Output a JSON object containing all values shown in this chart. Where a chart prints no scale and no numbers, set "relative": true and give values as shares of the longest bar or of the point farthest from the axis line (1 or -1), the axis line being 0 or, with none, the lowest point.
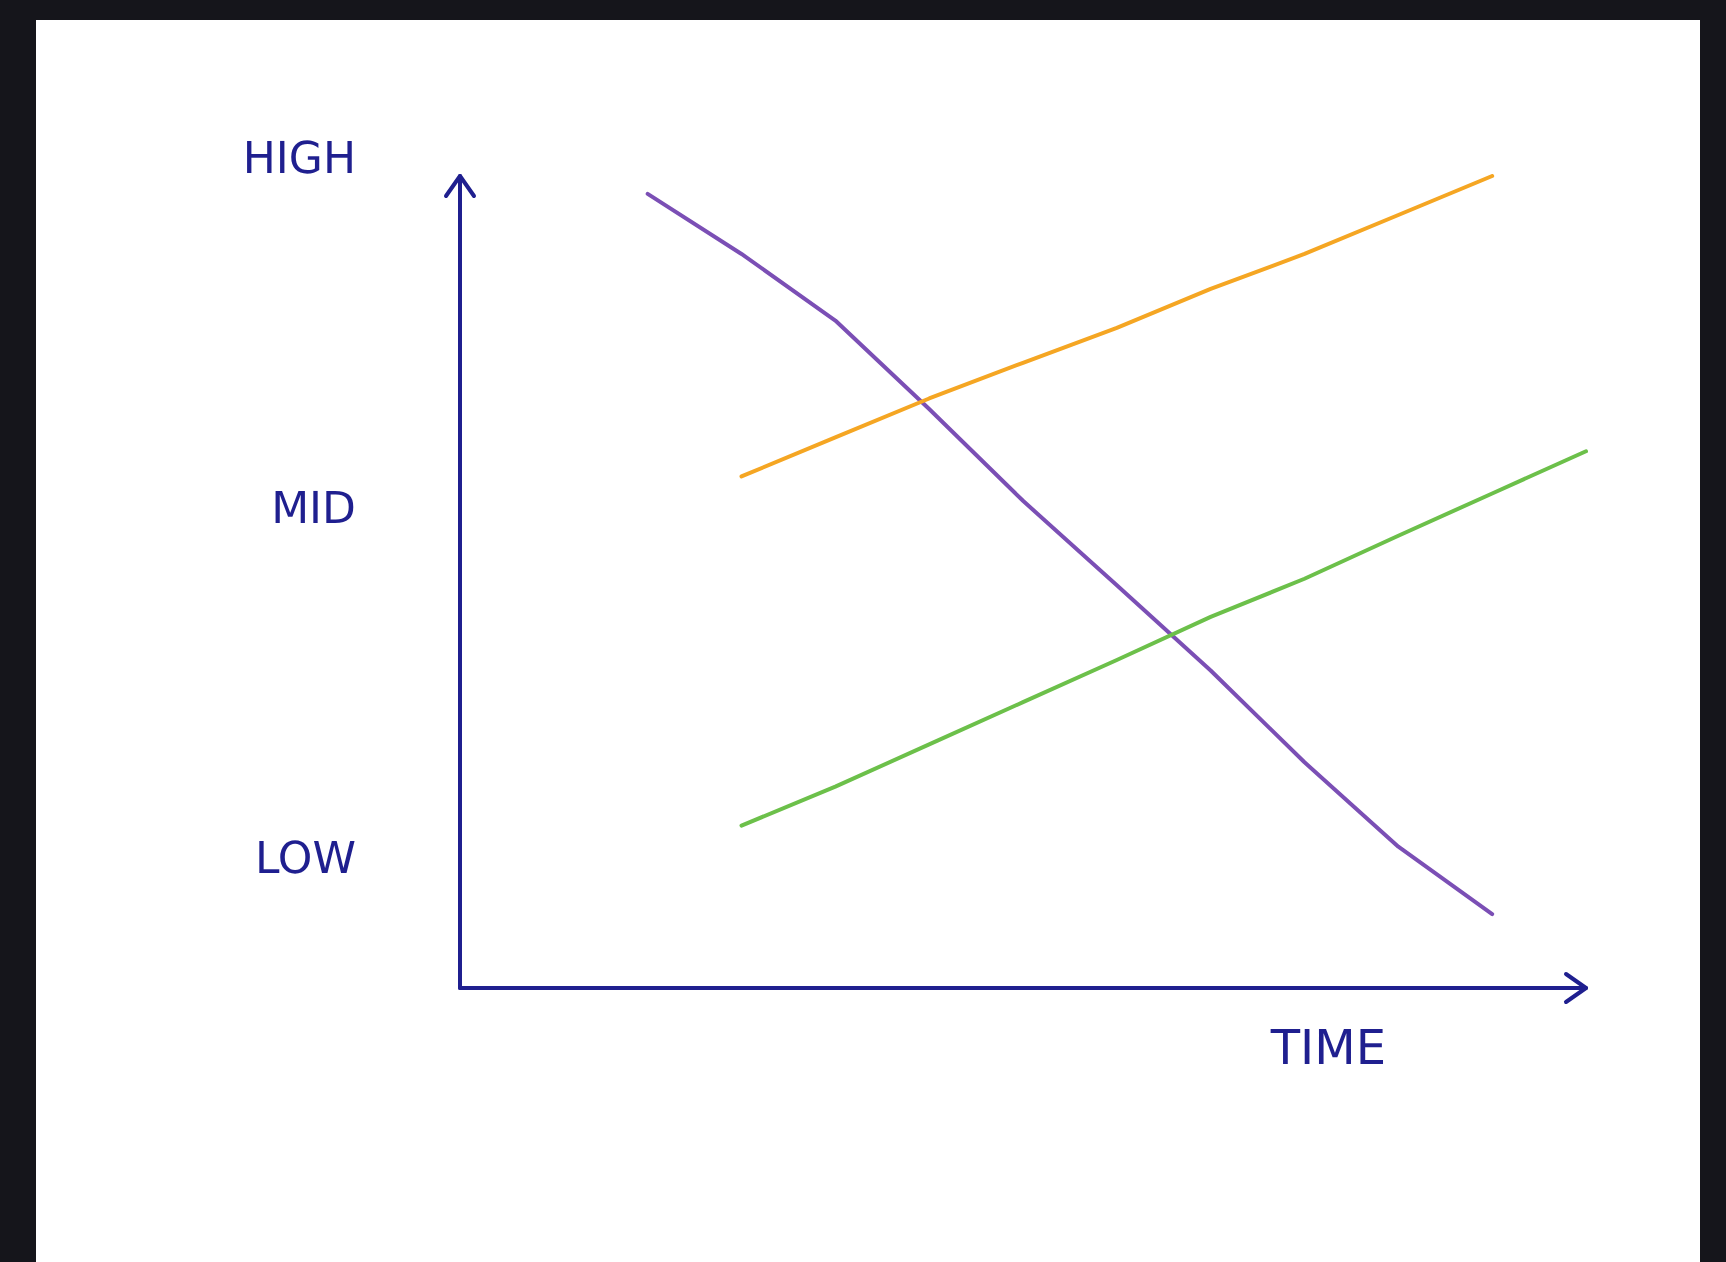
{
  "chart_data": {
    "type": "line",
    "xlabel": "TIME",
    "categories": [
      null,
      null,
      null,
      null,
      null,
      null,
      null,
      null,
      null,
      null,
      null,
      null,
      null
    ],
    "relative": true,
    "annotations": [
      "LOW",
      "MID",
      "HIGH"
    ],
    "grid": false,
    "marker": "none",
    "line_style": "solid",
    "series": [
      {
        "color": "#7b4fb5",
        "values": [
          null,
          null,
          0.978,
          0.904,
          0.822,
          0.713,
          0.6,
          0.496,
          0.391,
          0.278,
          0.174,
          0.091,
          null
        ]
      },
      {
        "color": "#f5a623",
        "values": [
          null,
          null,
          null,
          0.63,
          0.678,
          0.726,
          0.77,
          0.813,
          0.861,
          0.904,
          0.952,
          1,
          null
        ]
      },
      {
        "color": "#6cc04a",
        "values": [
          null,
          null,
          null,
          0.2,
          0.248,
          0.3,
          0.352,
          0.404,
          0.457,
          0.504,
          0.557,
          0.609,
          0.661
        ]
      }
    ]
  }
}
